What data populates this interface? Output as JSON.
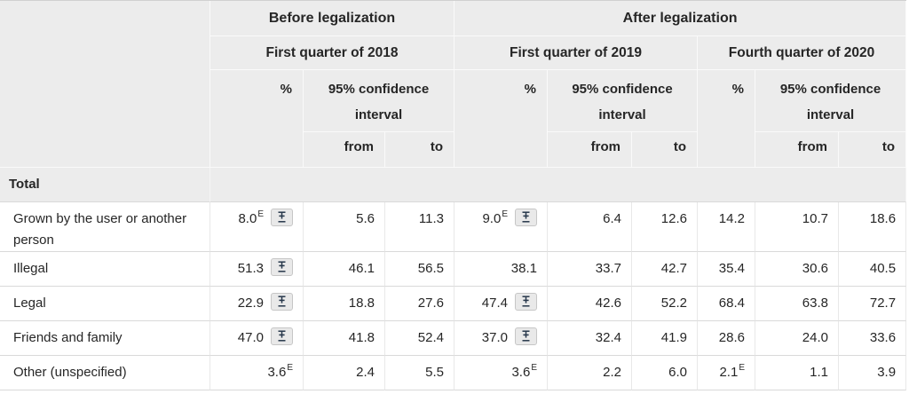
{
  "colors": {
    "header_bg": "#ececec",
    "header_grid": "#fafafa",
    "body_row_border": "#d9d9d9",
    "body_col_border": "#e8e8e8",
    "total_row_bg": "#ececec",
    "text": "#262626",
    "toggle_bg": "#e9e9e9",
    "toggle_border": "#c6c6c6",
    "toggle_glyph": "#26374a"
  },
  "icons": {
    "ci_toggle": "plus-minus-error-bar-icon"
  },
  "header": {
    "before_legalization": "Before legalization",
    "after_legalization": "After legalization",
    "quarters": [
      "First quarter of 2018",
      "First quarter of 2019",
      "Fourth quarter of 2020"
    ],
    "percent_label": "%",
    "ci_label": "95% confidence interval",
    "from_label": "from",
    "to_label": "to"
  },
  "total_row": {
    "label": "Total"
  },
  "rows": [
    {
      "label": "Grown by the user or another person",
      "cells": [
        {
          "value": "8.0",
          "flag": "E",
          "toggle": true
        },
        {
          "value": "5.6"
        },
        {
          "value": "11.3"
        },
        {
          "value": "9.0",
          "flag": "E",
          "toggle": true
        },
        {
          "value": "6.4"
        },
        {
          "value": "12.6"
        },
        {
          "value": "14.2"
        },
        {
          "value": "10.7"
        },
        {
          "value": "18.6"
        }
      ]
    },
    {
      "label": "Illegal",
      "cells": [
        {
          "value": "51.3",
          "toggle": true
        },
        {
          "value": "46.1"
        },
        {
          "value": "56.5"
        },
        {
          "value": "38.1"
        },
        {
          "value": "33.7"
        },
        {
          "value": "42.7"
        },
        {
          "value": "35.4"
        },
        {
          "value": "30.6"
        },
        {
          "value": "40.5"
        }
      ]
    },
    {
      "label": "Legal",
      "cells": [
        {
          "value": "22.9",
          "toggle": true
        },
        {
          "value": "18.8"
        },
        {
          "value": "27.6"
        },
        {
          "value": "47.4",
          "toggle": true
        },
        {
          "value": "42.6"
        },
        {
          "value": "52.2"
        },
        {
          "value": "68.4"
        },
        {
          "value": "63.8"
        },
        {
          "value": "72.7"
        }
      ]
    },
    {
      "label": "Friends and family",
      "cells": [
        {
          "value": "47.0",
          "toggle": true
        },
        {
          "value": "41.8"
        },
        {
          "value": "52.4"
        },
        {
          "value": "37.0",
          "toggle": true
        },
        {
          "value": "32.4"
        },
        {
          "value": "41.9"
        },
        {
          "value": "28.6"
        },
        {
          "value": "24.0"
        },
        {
          "value": "33.6"
        }
      ]
    },
    {
      "label": "Other (unspecified)",
      "cells": [
        {
          "value": "3.6",
          "flag": "E"
        },
        {
          "value": "2.4"
        },
        {
          "value": "5.5"
        },
        {
          "value": "3.6",
          "flag": "E"
        },
        {
          "value": "2.2"
        },
        {
          "value": "6.0"
        },
        {
          "value": "2.1",
          "flag": "E"
        },
        {
          "value": "1.1"
        },
        {
          "value": "3.9"
        }
      ]
    }
  ]
}
